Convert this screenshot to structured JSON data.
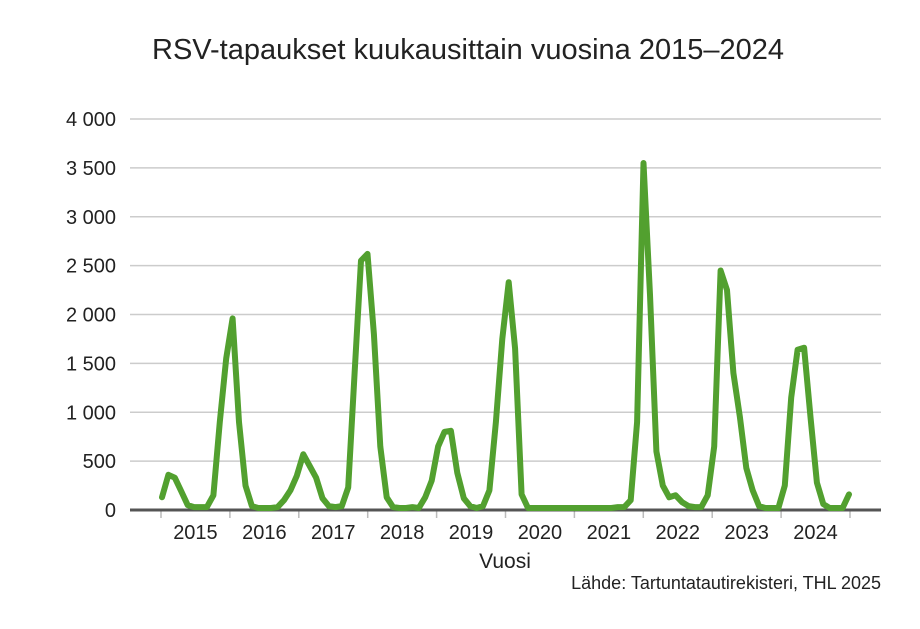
{
  "title": "RSV-tapaukset kuukausittain vuosina 2015–2024",
  "source": "Lähde: Tartuntatautirekisteri, THL 2025",
  "colors": {
    "line": "#52a02f",
    "grid": "#cccccc",
    "axis": "#555555",
    "text": "#222222"
  },
  "chart_data": {
    "type": "line",
    "title": "RSV-tapaukset kuukausittain vuosina 2015–2024",
    "xlabel": "Vuosi",
    "ylabel": "",
    "ylim": [
      0,
      4000
    ],
    "yticks": [
      0,
      500,
      1000,
      1500,
      2000,
      2500,
      3000,
      3500,
      4000
    ],
    "ytick_labels": [
      "0",
      "500",
      "1 000",
      "1 500",
      "2 000",
      "2 500",
      "3 000",
      "3 500",
      "4 000"
    ],
    "categories": [
      "2015",
      "2016",
      "2017",
      "2018",
      "2019",
      "2020",
      "2021",
      "2022",
      "2023",
      "2024"
    ],
    "grid": true,
    "legend": "none",
    "series": [
      {
        "name": "RSV-tapaukset",
        "frequency": "monthly",
        "start": "2015-01",
        "values": [
          130,
          360,
          330,
          190,
          50,
          30,
          30,
          30,
          150,
          900,
          1550,
          1960,
          900,
          250,
          40,
          20,
          20,
          20,
          30,
          100,
          200,
          350,
          570,
          450,
          330,
          120,
          40,
          30,
          40,
          230,
          1400,
          2550,
          2620,
          1800,
          650,
          130,
          30,
          20,
          20,
          30,
          20,
          130,
          300,
          650,
          800,
          810,
          380,
          120,
          40,
          20,
          40,
          200,
          900,
          1750,
          2330,
          1650,
          160,
          20,
          20,
          20,
          20,
          20,
          20,
          20,
          20,
          20,
          20,
          20,
          20,
          20,
          20,
          30,
          30,
          100,
          900,
          3550,
          2200,
          600,
          250,
          130,
          150,
          80,
          40,
          30,
          30,
          150,
          650,
          2450,
          2250,
          1400,
          950,
          430,
          200,
          40,
          20,
          20,
          20,
          250,
          1150,
          1640,
          1660,
          950,
          280,
          60,
          20,
          20,
          20,
          160
        ]
      }
    ]
  }
}
